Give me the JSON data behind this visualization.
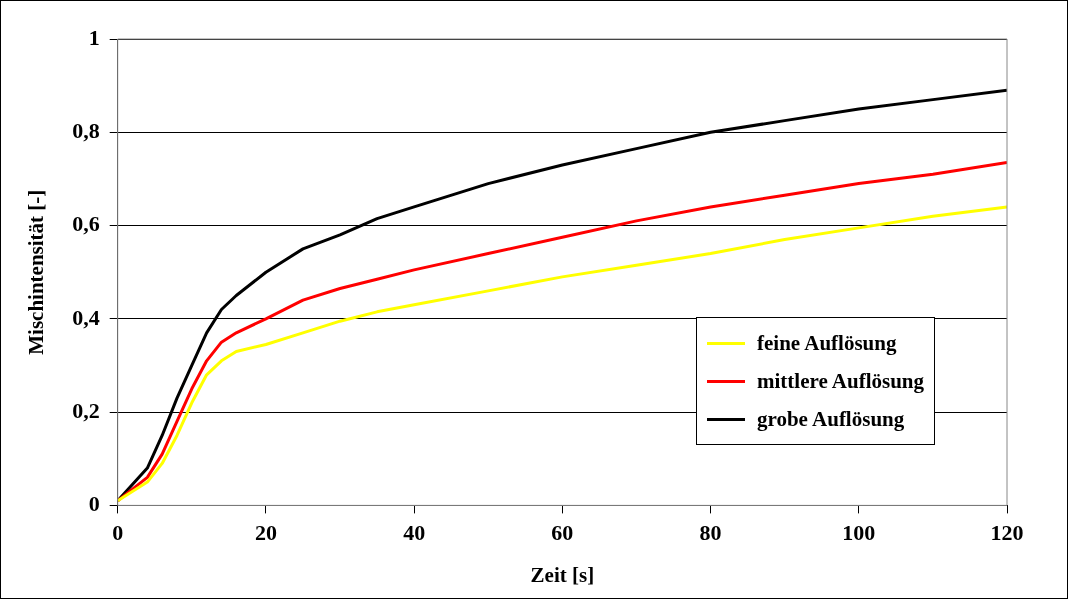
{
  "chart_data": {
    "type": "line",
    "xlabel": "Zeit [s]",
    "ylabel": "Mischintensität [-]",
    "xlim": [
      0,
      120
    ],
    "xticks": [
      0,
      20,
      40,
      60,
      80,
      100,
      120
    ],
    "ylim": [
      0,
      1
    ],
    "yticks": [
      0,
      {
        "value": 0.2,
        "label": "0,2"
      },
      {
        "value": 0.4,
        "label": "0,4"
      },
      {
        "value": 0.6,
        "label": "0,6"
      },
      {
        "value": 0.8,
        "label": "0,8"
      },
      1
    ],
    "grid": "y",
    "legend": "right",
    "marker": "none",
    "line_style": "solid",
    "x": [
      0,
      4,
      6,
      8,
      10,
      12,
      14,
      16,
      20,
      25,
      30,
      35,
      40,
      50,
      60,
      70,
      80,
      90,
      100,
      110,
      120
    ],
    "series": [
      {
        "name": "feine Auflösung",
        "color": "#ffff00",
        "values": [
          0.01,
          0.05,
          0.09,
          0.15,
          0.22,
          0.28,
          0.31,
          0.33,
          0.345,
          0.37,
          0.395,
          0.415,
          0.43,
          0.46,
          0.49,
          0.515,
          0.54,
          0.57,
          0.595,
          0.62,
          0.64
        ]
      },
      {
        "name": "mittlere Auflösung",
        "color": "#ff0000",
        "values": [
          0.01,
          0.06,
          0.11,
          0.18,
          0.25,
          0.31,
          0.35,
          0.37,
          0.4,
          0.44,
          0.465,
          0.485,
          0.505,
          0.54,
          0.575,
          0.61,
          0.64,
          0.665,
          0.69,
          0.71,
          0.735
        ]
      },
      {
        "name": "grobe Auflösung",
        "color": "#000000",
        "values": [
          0.01,
          0.08,
          0.15,
          0.23,
          0.3,
          0.37,
          0.42,
          0.45,
          0.5,
          0.55,
          0.58,
          0.615,
          0.64,
          0.69,
          0.73,
          0.765,
          0.8,
          0.825,
          0.85,
          0.87,
          0.89
        ]
      }
    ]
  }
}
